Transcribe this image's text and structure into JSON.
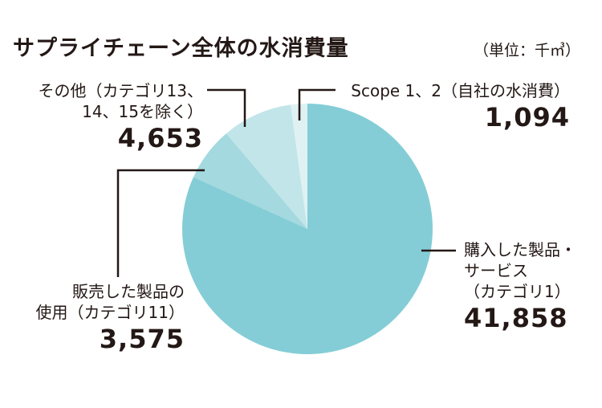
{
  "chart_data": {
    "type": "pie",
    "title": "サプライチェーン全体の水消費量",
    "unit": "（単位：千㎥）",
    "slices": [
      {
        "label_lines": [
          "購入した製品・",
          "サービス",
          "（カテゴリ1）"
        ],
        "value": 41858,
        "value_text": "41,858",
        "color": "#84CDD6"
      },
      {
        "label_lines": [
          "販売した製品の",
          "使用（カテゴリ11）"
        ],
        "value": 3575,
        "value_text": "3,575",
        "color": "#A3D9DF"
      },
      {
        "label_lines": [
          "その他（カテゴリ13、",
          "14、15を除く）"
        ],
        "value": 4653,
        "value_text": "4,653",
        "color": "#C2E5E9"
      },
      {
        "label_lines": [
          "Scope 1、2（自社の水消費）"
        ],
        "value": 1094,
        "value_text": "1,094",
        "color": "#DFF1F3"
      }
    ],
    "start_angle": "12 o'clock",
    "direction": "clockwise",
    "legend": "none"
  }
}
